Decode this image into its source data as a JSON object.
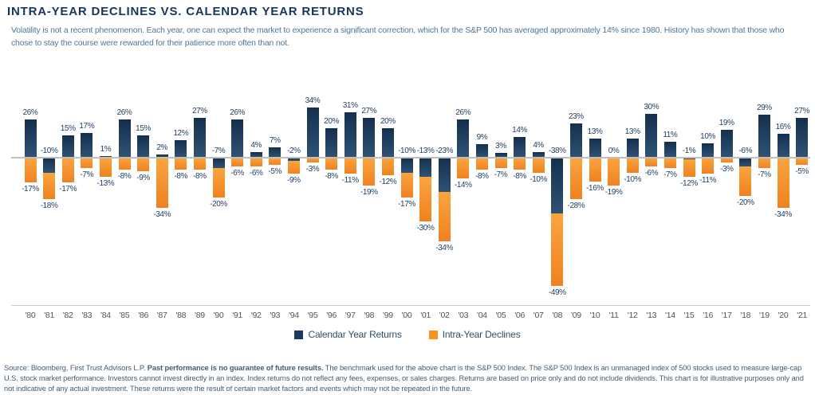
{
  "header": {
    "title": "INTRA-YEAR DECLINES VS. CALENDAR YEAR RETURNS",
    "subtitle": "Volatility is not a recent phenomenon. Each year, one can expect the market to experience a significant correction, which for the S&P 500 has averaged approximately 14% since 1980. History has shown that those who chose to stay the course were rewarded for their patience more often than not."
  },
  "chart_data": {
    "type": "bar",
    "title": "Intra-Year Declines vs. Calendar Year Returns",
    "unit": "%",
    "categories": [
      "'80",
      "'81",
      "'82",
      "'83",
      "'84",
      "'85",
      "'86",
      "'87",
      "'88",
      "'89",
      "'90",
      "'91",
      "'92",
      "'93",
      "'94",
      "'95",
      "'96",
      "'97",
      "'98",
      "'99",
      "'00",
      "'01",
      "'02",
      "'03",
      "'04",
      "'05",
      "'06",
      "'07",
      "'08",
      "'09",
      "'10",
      "'11",
      "'12",
      "'13",
      "'14",
      "'15",
      "'16",
      "'17",
      "'18",
      "'19",
      "'20",
      "'21"
    ],
    "series": [
      {
        "name": "Calendar Year Returns",
        "color": "#1b3a5e",
        "values": [
          26,
          -10,
          15,
          17,
          1,
          26,
          15,
          2,
          12,
          27,
          -7,
          26,
          4,
          7,
          -2,
          34,
          20,
          31,
          27,
          20,
          -10,
          -13,
          -23,
          26,
          9,
          3,
          14,
          4,
          -38,
          23,
          13,
          0,
          13,
          30,
          11,
          -1,
          10,
          19,
          -6,
          29,
          16,
          27
        ]
      },
      {
        "name": "Intra-Year Declines",
        "color": "#f7941e",
        "values": [
          -17,
          -18,
          -17,
          -7,
          -13,
          -8,
          -9,
          -34,
          -8,
          -8,
          -20,
          -6,
          -6,
          -5,
          -9,
          -3,
          -8,
          -11,
          -19,
          -12,
          -17,
          -30,
          -34,
          -14,
          -8,
          -7,
          -8,
          -10,
          -49,
          -28,
          -16,
          -19,
          -10,
          -6,
          -7,
          -12,
          -11,
          -3,
          -20,
          -7,
          -34,
          -5
        ]
      }
    ],
    "ylim": [
      -90,
      40
    ],
    "grid": "zero axis line only, bottom baseline above year labels",
    "legend_position": "bottom-center",
    "stacking_note": "in negative return years the intra-year decline bar is drawn stacked below the calendar return bar"
  },
  "legend": {
    "calendar_label": "Calendar Year Returns",
    "intra_label": "Intra-Year Declines"
  },
  "footer": {
    "source_prefix": "Source: Bloomberg, First Trust Advisors L.P. ",
    "bold_disclaimer": "Past performance is no guarantee of future results.",
    "body": " The benchmark used for the above chart is the S&P 500 Index. The S&P 500 Index is an unmanaged index of 500 stocks used to measure large-cap U.S. stock market performance. Investors cannot invest directly in an index. Index returns do not reflect any fees, expenses, or sales charges. Returns are based on price only and do not include dividends. This chart is for illustrative purposes only and not indicative of any actual investment. These returns were the result of certain market factors and events which may not be repeated in the future."
  },
  "colors": {
    "title_navy": "#17365d",
    "bar_blue": "#1b3a5e",
    "bar_orange": "#f7941e",
    "axis_line": "#bfbfbf"
  }
}
